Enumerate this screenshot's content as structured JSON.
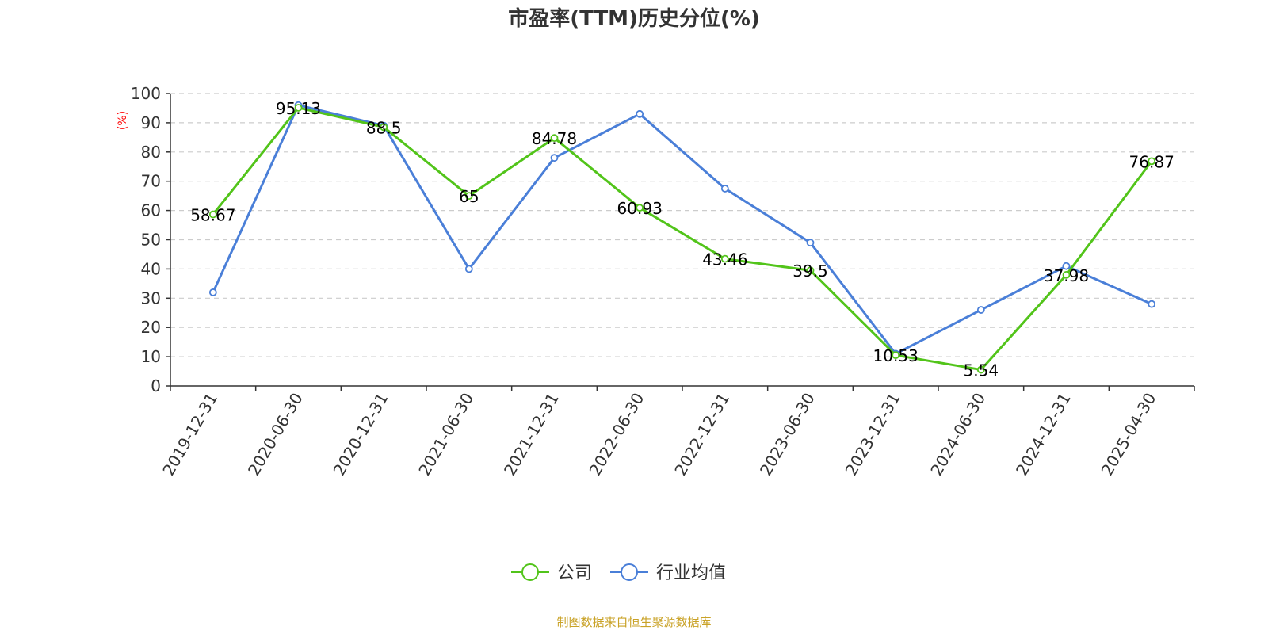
{
  "chart_data": {
    "type": "line",
    "title": "市盈率(TTM)历史分位(%)",
    "ylabel": "(%)",
    "ylim": [
      0,
      100
    ],
    "yticks": [
      0,
      10,
      20,
      30,
      40,
      50,
      60,
      70,
      80,
      90,
      100
    ],
    "categories": [
      "2019-12-31",
      "2020-06-30",
      "2020-12-31",
      "2021-06-30",
      "2021-12-31",
      "2022-06-30",
      "2022-12-31",
      "2023-06-30",
      "2023-12-31",
      "2024-06-30",
      "2024-12-31",
      "2025-04-30"
    ],
    "grid": true,
    "legend_position": "bottom-center",
    "series": [
      {
        "name": "公司",
        "color": "#52c41a",
        "values": [
          58.67,
          95.13,
          88.5,
          65,
          84.78,
          60.93,
          43.46,
          39.5,
          10.53,
          5.54,
          37.98,
          76.87
        ],
        "labels": [
          "58.67",
          "95.13",
          "88.5",
          "65",
          "84.78",
          "60.93",
          "43.46",
          "39.5",
          "10.53",
          "5.54",
          "37.98",
          "76.87"
        ]
      },
      {
        "name": "行业均值",
        "color": "#4a7fd8",
        "values": [
          32,
          96,
          89,
          40,
          78,
          93,
          67.5,
          49,
          11,
          26,
          41,
          28
        ]
      }
    ]
  },
  "source_note": "制图数据来自恒生聚源数据库",
  "colors": {
    "axis": "#333333",
    "grid": "#cccccc",
    "ylabel": "#ff0000",
    "source": "#c9a227"
  }
}
